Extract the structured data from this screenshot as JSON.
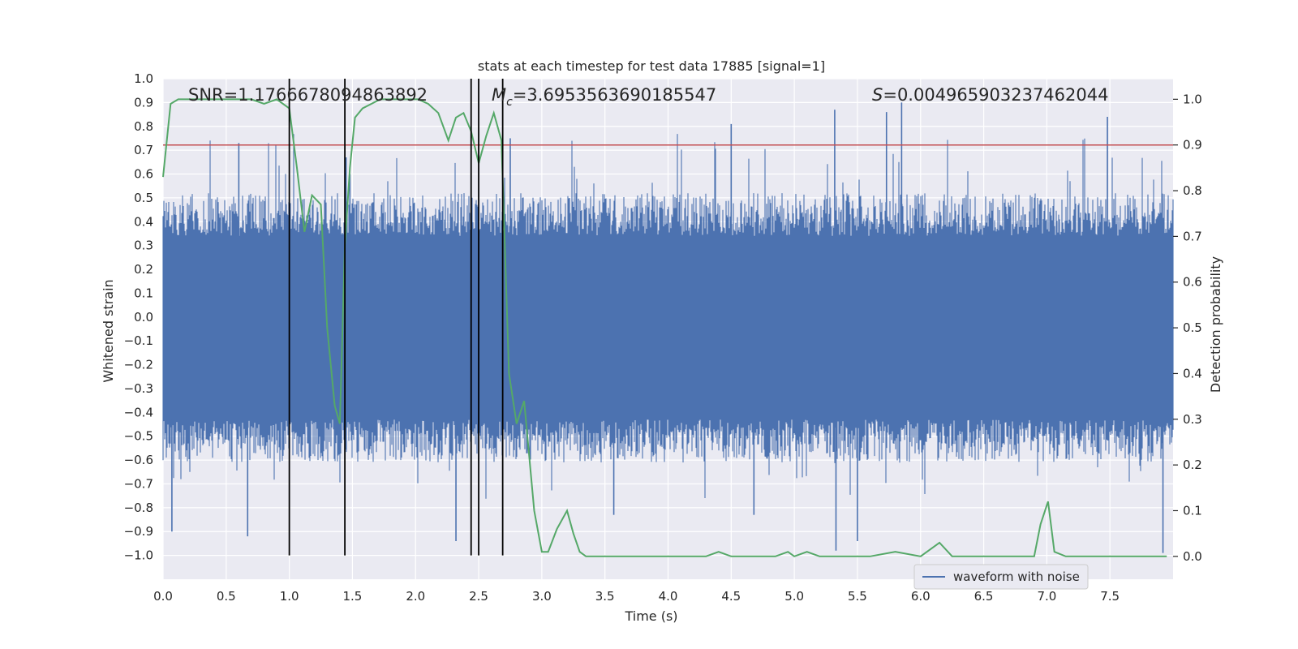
{
  "chart_data": {
    "type": "line",
    "title": "stats at each timestep for test data 17885 [signal=1]",
    "xlabel": "Time (s)",
    "ylabel": "Whitened strain",
    "y2label": "Detection probability",
    "xlim": [
      0.0,
      8.0
    ],
    "ylim": [
      -1.1,
      1.0
    ],
    "y2lim": [
      -0.05,
      1.045
    ],
    "x_ticks": [
      "0.0",
      "0.5",
      "1.0",
      "1.5",
      "2.0",
      "2.5",
      "3.0",
      "3.5",
      "4.0",
      "4.5",
      "5.0",
      "5.5",
      "6.0",
      "6.5",
      "7.0",
      "7.5"
    ],
    "y_ticks": [
      "1.0",
      "0.9",
      "0.8",
      "0.7",
      "0.6",
      "0.5",
      "0.4",
      "0.3",
      "0.2",
      "0.1",
      "0.0",
      "−0.1",
      "−0.2",
      "−0.3",
      "−0.4",
      "−0.5",
      "−0.6",
      "−0.7",
      "−0.8",
      "−0.9",
      "−1.0"
    ],
    "y2_ticks": [
      "1.0",
      "0.9",
      "0.8",
      "0.7",
      "0.6",
      "0.5",
      "0.4",
      "0.3",
      "0.2",
      "0.1",
      "0.0"
    ],
    "grid": true,
    "legend_position": "bottom-right",
    "annotations": {
      "snr": "SNR=1.1766678094863892",
      "mc_symbol": "M",
      "mc_sub": "c",
      "mc_value": "=3.6953563690185547",
      "s_symbol": "S",
      "s_value": "=0.004965903237462044"
    },
    "series": [
      {
        "name": "waveform with noise",
        "axis": "left",
        "style": "dense-noise",
        "color": "#4c72b0",
        "core_band": [
          -0.43,
          0.34
        ],
        "typical_peak": 0.52,
        "notable_spikes": [
          {
            "x": 0.07,
            "y": -0.9
          },
          {
            "x": 0.67,
            "y": -0.92
          },
          {
            "x": 2.32,
            "y": -0.94
          },
          {
            "x": 3.57,
            "y": -0.83
          },
          {
            "x": 4.68,
            "y": -0.83
          },
          {
            "x": 5.33,
            "y": -0.98
          },
          {
            "x": 5.5,
            "y": -0.94
          },
          {
            "x": 7.92,
            "y": -0.99
          },
          {
            "x": 1.45,
            "y": 0.67
          },
          {
            "x": 1.48,
            "y": 0.6
          },
          {
            "x": 4.5,
            "y": 0.81
          },
          {
            "x": 5.32,
            "y": 0.87
          },
          {
            "x": 5.85,
            "y": 0.9
          },
          {
            "x": 5.73,
            "y": 0.86
          },
          {
            "x": 7.48,
            "y": 0.84
          },
          {
            "x": 0.6,
            "y": 0.73
          },
          {
            "x": 2.75,
            "y": 0.75
          }
        ]
      },
      {
        "name": "",
        "axis": "right",
        "style": "line",
        "color": "#55a868",
        "x": [
          0.0,
          0.06,
          0.12,
          0.2,
          0.3,
          0.4,
          0.5,
          0.6,
          0.7,
          0.8,
          0.9,
          1.0,
          1.06,
          1.12,
          1.18,
          1.25,
          1.3,
          1.36,
          1.4,
          1.44,
          1.48,
          1.52,
          1.58,
          1.65,
          1.72,
          1.8,
          1.88,
          1.95,
          2.02,
          2.1,
          2.18,
          2.26,
          2.32,
          2.38,
          2.44,
          2.5,
          2.56,
          2.62,
          2.68,
          2.74,
          2.8,
          2.86,
          2.9,
          2.94,
          3.0,
          3.05,
          3.12,
          3.2,
          3.25,
          3.3,
          3.35,
          3.5,
          3.7,
          3.9,
          4.1,
          4.3,
          4.4,
          4.5,
          4.7,
          4.85,
          4.95,
          5.0,
          5.1,
          5.2,
          5.3,
          5.4,
          5.5,
          5.6,
          5.8,
          6.0,
          6.15,
          6.25,
          6.4,
          6.6,
          6.8,
          6.9,
          6.95,
          7.01,
          7.06,
          7.15,
          7.3,
          7.6,
          7.8,
          7.95
        ],
        "y": [
          0.83,
          0.99,
          1.0,
          1.0,
          1.0,
          1.0,
          1.0,
          1.0,
          1.0,
          0.99,
          1.0,
          0.98,
          0.85,
          0.71,
          0.79,
          0.77,
          0.5,
          0.33,
          0.29,
          0.68,
          0.85,
          0.96,
          0.98,
          0.99,
          1.0,
          1.0,
          1.0,
          1.0,
          1.0,
          0.99,
          0.97,
          0.91,
          0.96,
          0.97,
          0.93,
          0.86,
          0.92,
          0.97,
          0.91,
          0.4,
          0.29,
          0.34,
          0.22,
          0.1,
          0.01,
          0.01,
          0.06,
          0.1,
          0.05,
          0.01,
          0.0,
          0.0,
          0.0,
          0.0,
          0.0,
          0.0,
          0.01,
          0.0,
          0.0,
          0.0,
          0.01,
          0.0,
          0.01,
          0.0,
          0.0,
          0.0,
          0.0,
          0.0,
          0.01,
          0.0,
          0.03,
          0.0,
          0.0,
          0.0,
          0.0,
          0.0,
          0.07,
          0.12,
          0.01,
          0.0,
          0.0,
          0.0,
          0.0,
          0.0
        ]
      },
      {
        "name": "",
        "axis": "right",
        "style": "hline",
        "color": "#c44e52",
        "y": 0.9
      }
    ],
    "vertical_lines": [
      1.0,
      1.44,
      2.44,
      2.5,
      2.69
    ],
    "vertical_lines_range": [
      -1.0,
      1.0
    ]
  }
}
